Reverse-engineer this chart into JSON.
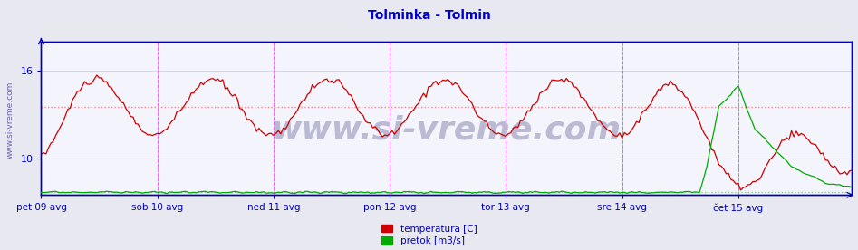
{
  "title": "Tolminka - Tolmin",
  "title_color": "#0000cc",
  "title_fontsize": 10,
  "bg_color": "#e8e8f0",
  "plot_bg_color": "#f4f4fc",
  "grid_color": "#c8c8d8",
  "ylabel_temp": "temperatura [C]",
  "ylabel_flow": "pretok [m3/s]",
  "x_tick_labels": [
    "pet 09 avg",
    "sob 10 avg",
    "ned 11 avg",
    "pon 12 avg",
    "tor 13 avg",
    "sre 14 avg",
    "čet 15 avg"
  ],
  "x_tick_positions": [
    0,
    48,
    96,
    144,
    192,
    240,
    288
  ],
  "total_points": 336,
  "ylim_temp": [
    7.5,
    18.0
  ],
  "ylim_flow": [
    0,
    9.0
  ],
  "yticks_temp": [
    10,
    16
  ],
  "temp_avg_value": 13.5,
  "flow_avg_value": 0.18,
  "temp_color": "#cc0000",
  "flow_color": "#00aa00",
  "avg_line_color_temp": "#ee8888",
  "avg_line_color_flow": "#88cc88",
  "vline_color": "#ff44ff",
  "vline_positions": [
    48,
    96,
    144,
    192,
    240,
    288
  ],
  "border_color": "#0000bb",
  "watermark_text": "www.si-vreme.com",
  "watermark_color": "#b0b0cc",
  "watermark_fontsize": 26,
  "side_label": "www.si-vreme.com",
  "side_label_color": "#6666aa",
  "side_label_fontsize": 6.5
}
